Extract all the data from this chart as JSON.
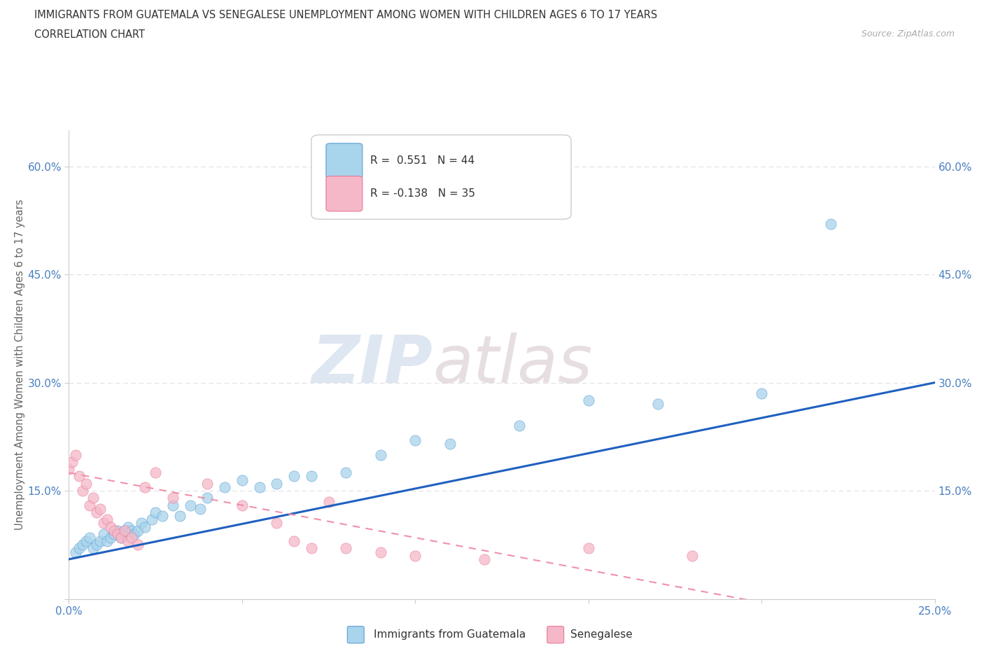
{
  "title_line1": "IMMIGRANTS FROM GUATEMALA VS SENEGALESE UNEMPLOYMENT AMONG WOMEN WITH CHILDREN AGES 6 TO 17 YEARS",
  "title_line2": "CORRELATION CHART",
  "source_text": "Source: ZipAtlas.com",
  "ylabel": "Unemployment Among Women with Children Ages 6 to 17 years",
  "xlim": [
    0.0,
    0.25
  ],
  "ylim": [
    0.0,
    0.65
  ],
  "xticks": [
    0.0,
    0.05,
    0.1,
    0.15,
    0.2,
    0.25
  ],
  "xticklabels": [
    "0.0%",
    "",
    "",
    "",
    "",
    "25.0%"
  ],
  "yticks": [
    0.0,
    0.15,
    0.3,
    0.45,
    0.6
  ],
  "yticklabels": [
    "",
    "15.0%",
    "30.0%",
    "45.0%",
    "60.0%"
  ],
  "background_color": "#ffffff",
  "grid_color": "#e0e0e8",
  "watermark_zip": "ZIP",
  "watermark_atlas": "atlas",
  "R_guatemala": 0.551,
  "N_guatemala": 44,
  "R_senegalese": -0.138,
  "N_senegalese": 35,
  "color_guatemala": "#a8d4ec",
  "color_senegalese": "#f5b8c8",
  "edge_guatemala": "#5a9fd4",
  "edge_senegalese": "#e87898",
  "line_color_guatemala": "#2060c0",
  "line_color_senegalese": "#f090a8",
  "guatemala_x": [
    0.002,
    0.003,
    0.004,
    0.005,
    0.006,
    0.007,
    0.008,
    0.009,
    0.01,
    0.011,
    0.012,
    0.013,
    0.014,
    0.015,
    0.016,
    0.017,
    0.018,
    0.019,
    0.02,
    0.021,
    0.022,
    0.024,
    0.025,
    0.027,
    0.03,
    0.032,
    0.035,
    0.038,
    0.04,
    0.045,
    0.05,
    0.055,
    0.06,
    0.065,
    0.07,
    0.08,
    0.09,
    0.1,
    0.11,
    0.13,
    0.15,
    0.17,
    0.2,
    0.22
  ],
  "guatemala_y": [
    0.065,
    0.07,
    0.075,
    0.08,
    0.085,
    0.07,
    0.075,
    0.08,
    0.09,
    0.08,
    0.085,
    0.09,
    0.095,
    0.085,
    0.095,
    0.1,
    0.095,
    0.09,
    0.095,
    0.105,
    0.1,
    0.11,
    0.12,
    0.115,
    0.13,
    0.115,
    0.13,
    0.125,
    0.14,
    0.155,
    0.165,
    0.155,
    0.16,
    0.17,
    0.17,
    0.175,
    0.2,
    0.22,
    0.215,
    0.24,
    0.275,
    0.27,
    0.285,
    0.52
  ],
  "senegalese_x": [
    0.0,
    0.001,
    0.002,
    0.003,
    0.004,
    0.005,
    0.006,
    0.007,
    0.008,
    0.009,
    0.01,
    0.011,
    0.012,
    0.013,
    0.014,
    0.015,
    0.016,
    0.017,
    0.018,
    0.02,
    0.022,
    0.025,
    0.03,
    0.04,
    0.05,
    0.06,
    0.065,
    0.07,
    0.075,
    0.08,
    0.09,
    0.1,
    0.12,
    0.15,
    0.18
  ],
  "senegalese_y": [
    0.18,
    0.19,
    0.2,
    0.17,
    0.15,
    0.16,
    0.13,
    0.14,
    0.12,
    0.125,
    0.105,
    0.11,
    0.1,
    0.095,
    0.09,
    0.085,
    0.095,
    0.08,
    0.085,
    0.075,
    0.155,
    0.175,
    0.14,
    0.16,
    0.13,
    0.105,
    0.08,
    0.07,
    0.135,
    0.07,
    0.065,
    0.06,
    0.055,
    0.07,
    0.06
  ]
}
